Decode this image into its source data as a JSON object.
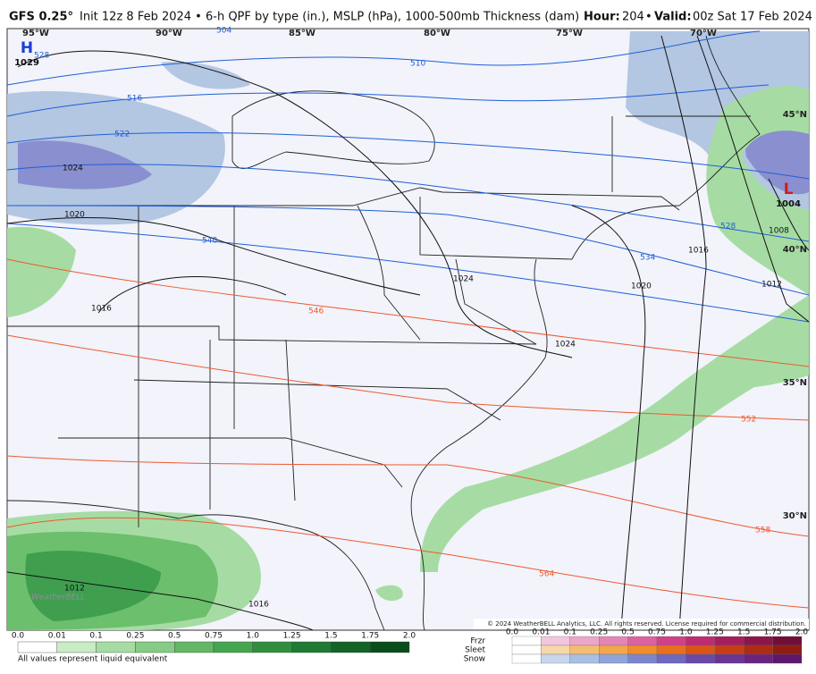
{
  "header": {
    "model": "GFS 0.25°",
    "description": "Init 12z 8 Feb 2024 • 6-h QPF by type (in.), MSLP (hPa), 1000-500mb Thickness (dam)",
    "hour_key": "Hour:",
    "hour": "204",
    "valid_key": "Valid:",
    "valid": "00z Sat 17 Feb 2024"
  },
  "map": {
    "longitudes": [
      "95°W",
      "90°W",
      "85°W",
      "80°W",
      "75°W",
      "70°W"
    ],
    "latitudes": [
      "45°N",
      "40°N",
      "35°N",
      "30°N"
    ],
    "thickness_labels": [
      "510",
      "516",
      "522",
      "528",
      "534",
      "540",
      "546",
      "552",
      "558",
      "564",
      "504",
      "528"
    ],
    "pressure_labels": [
      "1024",
      "1020",
      "1016",
      "1012",
      "1016",
      "1020",
      "1024",
      "1024",
      "1016",
      "1012",
      "1008",
      "1016"
    ],
    "centers": [
      {
        "symbol": "H",
        "value": "1029"
      },
      {
        "symbol": "L",
        "value": "1004"
      }
    ],
    "copyright": "© 2024 WeatherBELL Analytics, LLC. All rights reserved. License required for commercial distribution.",
    "watermark": "WeatherBELL"
  },
  "legend": {
    "rain_ticks": [
      "0.0",
      "0.01",
      "0.1",
      "0.25",
      "0.5",
      "0.75",
      "1.0",
      "1.25",
      "1.5",
      "1.75",
      "2.0"
    ],
    "note": "All values represent liquid equivalent",
    "types": [
      "Frzr",
      "Sleet",
      "Snow"
    ],
    "frozen_ticks": [
      "0.0",
      "0.01",
      "0.1",
      "0.25",
      "0.5",
      "0.75",
      "1.0",
      "1.25",
      "1.5",
      "1.75",
      "2.0"
    ]
  }
}
